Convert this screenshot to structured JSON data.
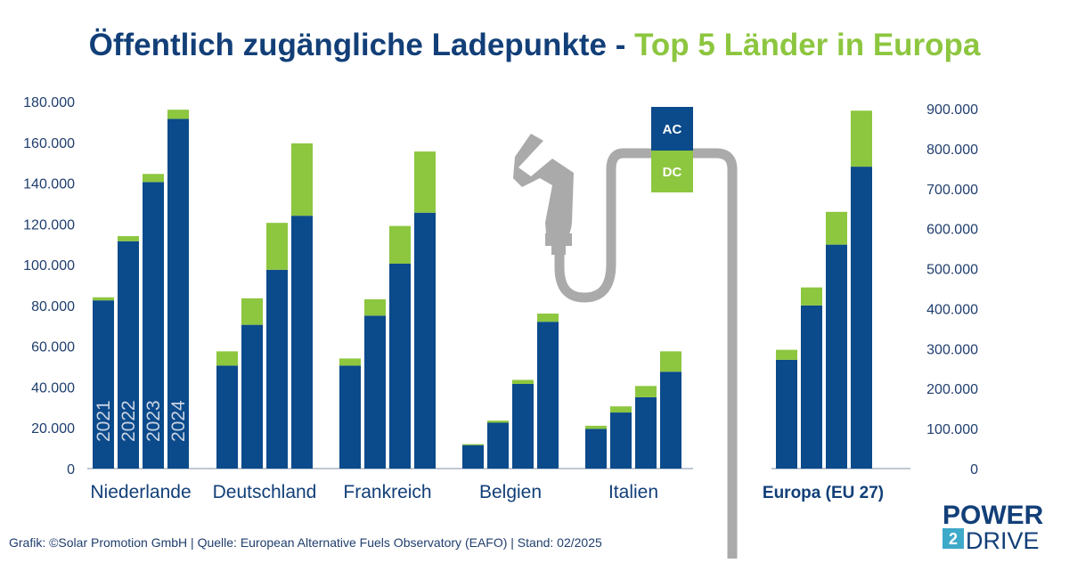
{
  "title": {
    "main": "Öffentlich zugängliche Ladepunkte - ",
    "accent": "Top 5 Länder in Europa"
  },
  "colors": {
    "ac": "#0b4a8b",
    "dc": "#8dc63f",
    "title_main": "#123f78",
    "cable": "#aaaaaa"
  },
  "legend": {
    "ac": "AC",
    "dc": "DC"
  },
  "footer": "Grafik: ©Solar Promotion GmbH | Quelle: European Alternative Fuels Observatory (EAFO) | Stand: 02/2025",
  "logo": {
    "top": "POWER",
    "mid": "2",
    "bottom": "DRIVE"
  },
  "connector_icon": "ev-charging-plug-icon",
  "chart_data": [
    {
      "type": "bar",
      "stacked": true,
      "categories": [
        "Niederlande",
        "Deutschland",
        "Frankreich",
        "Belgien",
        "Italien"
      ],
      "year_labels": [
        "2021",
        "2022",
        "2023",
        "2024"
      ],
      "series": [
        {
          "name": "AC",
          "values": [
            [
              82500,
              111500,
              140500,
              171500
            ],
            [
              50500,
              70500,
              97500,
              124000
            ],
            [
              50500,
              75000,
              100500,
              125500
            ],
            [
              11500,
              22500,
              41500,
              72000
            ],
            [
              19500,
              27500,
              35000,
              47500
            ]
          ]
        },
        {
          "name": "DC",
          "values": [
            [
              1500,
              2500,
              4000,
              4500
            ],
            [
              7000,
              13000,
              23000,
              35500
            ],
            [
              3500,
              8000,
              18500,
              30000
            ],
            [
              500,
              1000,
              2000,
              4000
            ],
            [
              1500,
              3000,
              5500,
              10000
            ]
          ]
        }
      ],
      "ylim": [
        0,
        180000
      ],
      "yticks": [
        "0",
        "20.000",
        "40.000",
        "60.000",
        "80.000",
        "100.000",
        "120.000",
        "140.000",
        "160.000",
        "180.000"
      ],
      "ytick_values": [
        0,
        20000,
        40000,
        60000,
        80000,
        100000,
        120000,
        140000,
        160000,
        180000
      ],
      "axis": "left",
      "grid": false
    },
    {
      "type": "bar",
      "stacked": true,
      "categories": [
        "Europa  (EU 27)"
      ],
      "series": [
        {
          "name": "AC",
          "values": [
            [
              272000,
              408000,
              560000,
              755000
            ]
          ]
        },
        {
          "name": "DC",
          "values": [
            [
              25000,
              45000,
              82000,
              140000
            ]
          ]
        }
      ],
      "ylim": [
        0,
        900000
      ],
      "yticks": [
        "0",
        "100.000",
        "200.000",
        "300.000",
        "400.000",
        "500.000",
        "600.000",
        "700.000",
        "800.000",
        "900.000"
      ],
      "ytick_values": [
        0,
        100000,
        200000,
        300000,
        400000,
        500000,
        600000,
        700000,
        800000,
        900000
      ],
      "axis": "right",
      "grid": false
    }
  ]
}
